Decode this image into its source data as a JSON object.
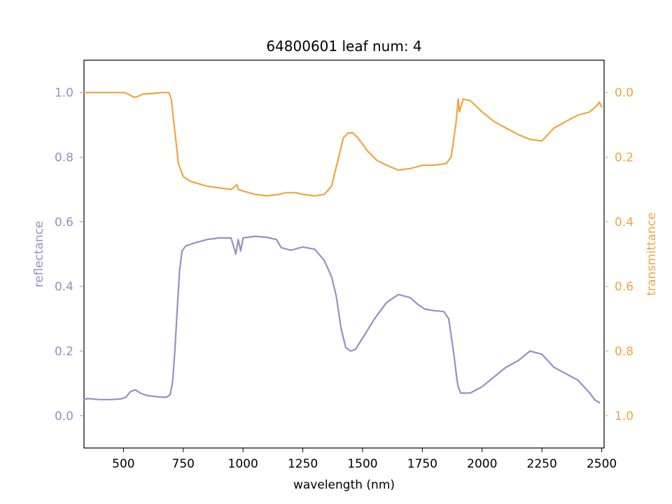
{
  "chart_data": {
    "type": "line",
    "title": "64800601 leaf num: 4",
    "xlabel": "wavelength (nm)",
    "ylabel_left": "reflectance",
    "ylabel_right": "transmittance",
    "xlim": [
      335,
      2510
    ],
    "ylim_left": [
      -0.1,
      1.1
    ],
    "ylim_right": [
      1.1,
      -0.1
    ],
    "right_axis_inverted": true,
    "grid": false,
    "xticks": [
      "500",
      "750",
      "1000",
      "1250",
      "1500",
      "1750",
      "2000",
      "2250",
      "2500"
    ],
    "yticks_left": [
      "0.0",
      "0.2",
      "0.4",
      "0.6",
      "0.8",
      "1.0"
    ],
    "yticks_right": [
      "0.0",
      "0.2",
      "0.4",
      "0.6",
      "0.8",
      "1.0"
    ],
    "colors": {
      "reflectance": "#9590c4",
      "transmittance": "#f0a540"
    },
    "series": [
      {
        "axis": "left",
        "points": [
          [
            335,
            0.05
          ],
          [
            350,
            0.053
          ],
          [
            400,
            0.05
          ],
          [
            450,
            0.05
          ],
          [
            490,
            0.052
          ],
          [
            510,
            0.057
          ],
          [
            530,
            0.075
          ],
          [
            550,
            0.08
          ],
          [
            570,
            0.07
          ],
          [
            600,
            0.062
          ],
          [
            650,
            0.058
          ],
          [
            680,
            0.057
          ],
          [
            695,
            0.065
          ],
          [
            705,
            0.1
          ],
          [
            715,
            0.2
          ],
          [
            725,
            0.33
          ],
          [
            735,
            0.45
          ],
          [
            745,
            0.51
          ],
          [
            760,
            0.525
          ],
          [
            800,
            0.535
          ],
          [
            850,
            0.545
          ],
          [
            900,
            0.55
          ],
          [
            950,
            0.55
          ],
          [
            970,
            0.5
          ],
          [
            980,
            0.545
          ],
          [
            990,
            0.51
          ],
          [
            1000,
            0.55
          ],
          [
            1050,
            0.555
          ],
          [
            1100,
            0.552
          ],
          [
            1140,
            0.545
          ],
          [
            1160,
            0.52
          ],
          [
            1200,
            0.512
          ],
          [
            1250,
            0.522
          ],
          [
            1300,
            0.515
          ],
          [
            1340,
            0.48
          ],
          [
            1370,
            0.43
          ],
          [
            1390,
            0.37
          ],
          [
            1410,
            0.27
          ],
          [
            1430,
            0.21
          ],
          [
            1450,
            0.2
          ],
          [
            1470,
            0.205
          ],
          [
            1500,
            0.24
          ],
          [
            1550,
            0.3
          ],
          [
            1600,
            0.35
          ],
          [
            1650,
            0.375
          ],
          [
            1700,
            0.365
          ],
          [
            1730,
            0.345
          ],
          [
            1760,
            0.33
          ],
          [
            1800,
            0.325
          ],
          [
            1840,
            0.322
          ],
          [
            1860,
            0.3
          ],
          [
            1880,
            0.2
          ],
          [
            1895,
            0.11
          ],
          [
            1900,
            0.09
          ],
          [
            1910,
            0.07
          ],
          [
            1950,
            0.07
          ],
          [
            2000,
            0.09
          ],
          [
            2050,
            0.12
          ],
          [
            2100,
            0.15
          ],
          [
            2150,
            0.17
          ],
          [
            2200,
            0.2
          ],
          [
            2250,
            0.19
          ],
          [
            2300,
            0.15
          ],
          [
            2350,
            0.13
          ],
          [
            2400,
            0.11
          ],
          [
            2450,
            0.07
          ],
          [
            2470,
            0.05
          ],
          [
            2490,
            0.04
          ]
        ]
      },
      {
        "axis": "right",
        "points": [
          [
            335,
            0.0
          ],
          [
            400,
            0.0
          ],
          [
            450,
            0.0
          ],
          [
            500,
            0.0
          ],
          [
            520,
            0.005
          ],
          [
            545,
            0.015
          ],
          [
            560,
            0.012
          ],
          [
            580,
            0.005
          ],
          [
            620,
            0.003
          ],
          [
            660,
            0.0
          ],
          [
            690,
            0.0
          ],
          [
            700,
            0.02
          ],
          [
            715,
            0.12
          ],
          [
            730,
            0.22
          ],
          [
            750,
            0.26
          ],
          [
            780,
            0.275
          ],
          [
            850,
            0.29
          ],
          [
            950,
            0.3
          ],
          [
            975,
            0.285
          ],
          [
            980,
            0.3
          ],
          [
            1000,
            0.305
          ],
          [
            1050,
            0.315
          ],
          [
            1100,
            0.32
          ],
          [
            1150,
            0.315
          ],
          [
            1180,
            0.31
          ],
          [
            1220,
            0.31
          ],
          [
            1250,
            0.315
          ],
          [
            1300,
            0.32
          ],
          [
            1340,
            0.315
          ],
          [
            1370,
            0.29
          ],
          [
            1400,
            0.2
          ],
          [
            1420,
            0.14
          ],
          [
            1440,
            0.125
          ],
          [
            1460,
            0.125
          ],
          [
            1480,
            0.14
          ],
          [
            1520,
            0.18
          ],
          [
            1560,
            0.21
          ],
          [
            1600,
            0.225
          ],
          [
            1650,
            0.24
          ],
          [
            1700,
            0.235
          ],
          [
            1750,
            0.225
          ],
          [
            1800,
            0.225
          ],
          [
            1850,
            0.22
          ],
          [
            1870,
            0.2
          ],
          [
            1890,
            0.1
          ],
          [
            1900,
            0.02
          ],
          [
            1905,
            0.06
          ],
          [
            1920,
            0.02
          ],
          [
            1950,
            0.025
          ],
          [
            2000,
            0.06
          ],
          [
            2050,
            0.09
          ],
          [
            2100,
            0.11
          ],
          [
            2150,
            0.13
          ],
          [
            2200,
            0.145
          ],
          [
            2250,
            0.15
          ],
          [
            2300,
            0.11
          ],
          [
            2350,
            0.09
          ],
          [
            2400,
            0.07
          ],
          [
            2450,
            0.06
          ],
          [
            2480,
            0.04
          ],
          [
            2490,
            0.03
          ],
          [
            2500,
            0.045
          ]
        ]
      }
    ]
  }
}
